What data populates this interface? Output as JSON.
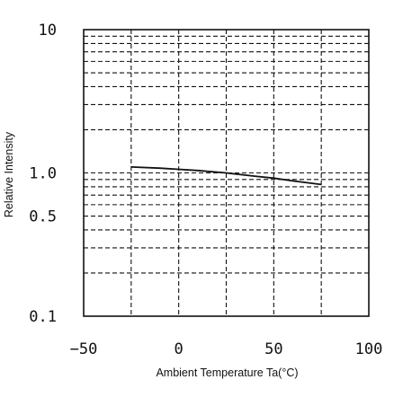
{
  "chart_data": {
    "type": "line",
    "title": "",
    "xlabel": "Ambient Temperature Ta(°C)",
    "ylabel": "Relative Intensity",
    "x_scale": "linear",
    "y_scale": "log",
    "xlim": [
      -50,
      100
    ],
    "ylim": [
      0.1,
      10
    ],
    "x_ticks": [
      -50,
      0,
      50,
      100
    ],
    "x_tick_labels": [
      "−50",
      "0",
      "50",
      "100"
    ],
    "y_tick_labels": [
      {
        "value": 10,
        "label": "10"
      },
      {
        "value": 1,
        "label": "1.0"
      },
      {
        "value": 0.5,
        "label": "0.5"
      },
      {
        "value": 0.1,
        "label": "0.1"
      }
    ],
    "grid": true,
    "legend": "none",
    "series": [
      {
        "x": [
          -25,
          -10,
          0,
          10,
          25,
          40,
          50,
          60,
          75
        ],
        "y": [
          1.1,
          1.08,
          1.06,
          1.04,
          1.0,
          0.95,
          0.92,
          0.88,
          0.83
        ]
      }
    ]
  }
}
